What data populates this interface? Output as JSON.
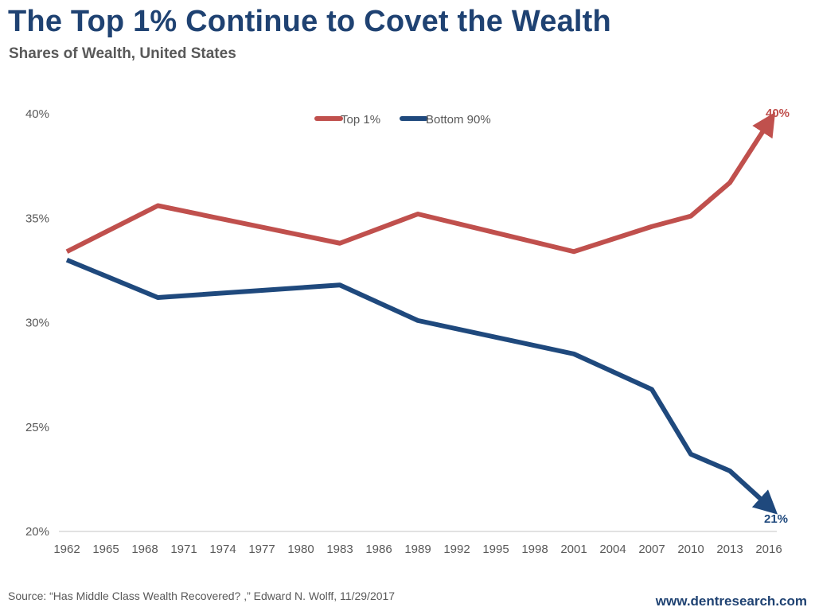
{
  "header": {
    "title": "The Top 1% Continue to Covet the Wealth",
    "subtitle": "Shares of Wealth, United States"
  },
  "footer": {
    "source": "Source: “Has Middle  Class Wealth Recovered? ,” Edward N. Wolff, 11/29/2017",
    "website": "www.dentresearch.com"
  },
  "chart_data": {
    "type": "line",
    "title": "The Top 1% Continue to Covet the Wealth",
    "subtitle": "Shares of Wealth, United States",
    "xlabel": "",
    "ylabel": "",
    "x_ticks": [
      "1962",
      "1965",
      "1968",
      "1971",
      "1974",
      "1977",
      "1980",
      "1983",
      "1986",
      "1989",
      "1992",
      "1995",
      "1998",
      "2001",
      "2004",
      "2007",
      "2010",
      "2013",
      "2016"
    ],
    "xlim": [
      1962,
      2016
    ],
    "y_ticks": [
      "20%",
      "25%",
      "30%",
      "35%",
      "40%"
    ],
    "y_tick_values": [
      20,
      25,
      30,
      35,
      40
    ],
    "ylim": [
      20,
      40
    ],
    "grid": false,
    "legend": {
      "placement": "top-center",
      "entries": [
        "Top 1%",
        "Bottom 90%"
      ]
    },
    "series": [
      {
        "name": "Top 1%",
        "color": "#c0504d",
        "end_arrow": true,
        "end_label": "40%",
        "x": [
          1962,
          1969,
          1983,
          1989,
          2001,
          2007,
          2010,
          2013,
          2016
        ],
        "values": [
          33.4,
          35.6,
          33.8,
          35.2,
          33.4,
          34.6,
          35.1,
          36.7,
          39.6
        ]
      },
      {
        "name": "Bottom 90%",
        "color": "#1f497d",
        "end_arrow": true,
        "end_label": "21%",
        "x": [
          1962,
          1969,
          1983,
          1989,
          2001,
          2007,
          2010,
          2013,
          2016
        ],
        "values": [
          33.0,
          31.2,
          31.8,
          30.1,
          28.5,
          26.8,
          23.7,
          22.9,
          21.2
        ]
      }
    ]
  }
}
